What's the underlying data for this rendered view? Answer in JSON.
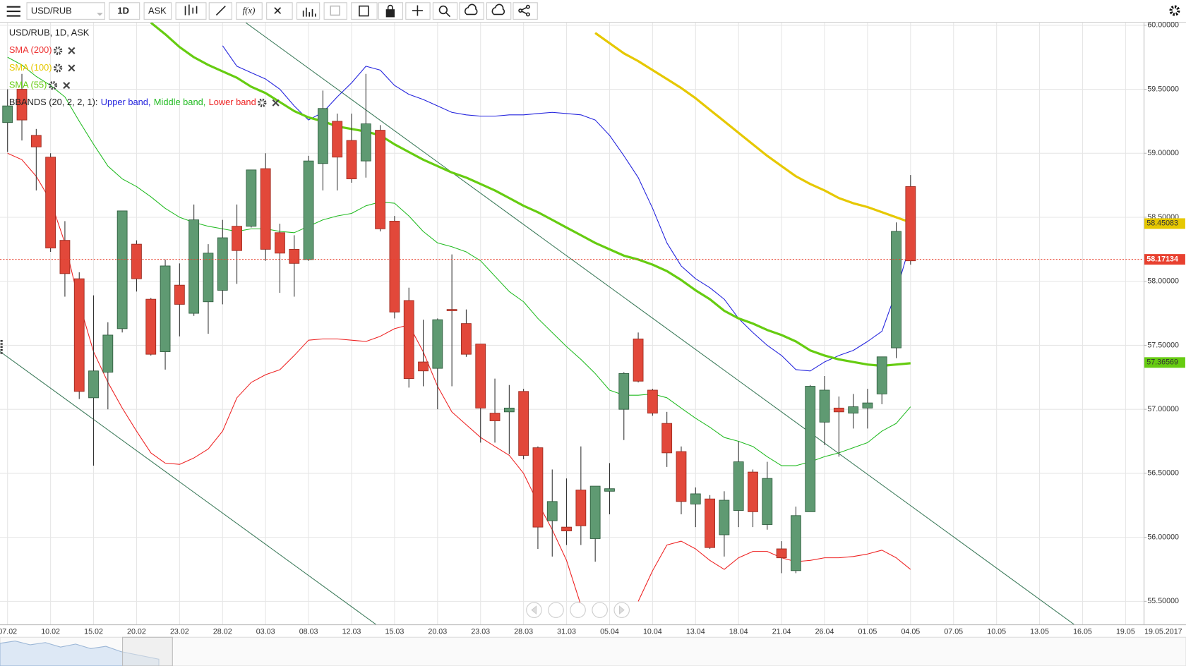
{
  "toolbar": {
    "symbol": "USD/RUB",
    "timeframe": "1D",
    "price_side": "ASK",
    "function_button": "f(x)"
  },
  "chart_data": {
    "type": "candlestick",
    "title": "USD/RUB, 1D, ASK",
    "categories": [
      "07.02",
      null,
      null,
      "10.02",
      null,
      null,
      "15.02",
      null,
      null,
      "20.02",
      null,
      null,
      "23.02",
      null,
      null,
      "28.02",
      null,
      null,
      "03.03",
      null,
      null,
      "08.03",
      null,
      null,
      "12.03",
      null,
      null,
      "15.03",
      null,
      null,
      "20.03",
      null,
      null,
      "23.03",
      null,
      null,
      "28.03",
      null,
      null,
      "31.03",
      null,
      null,
      "05.04",
      null,
      null,
      "10.04",
      null,
      null,
      "13.04",
      null,
      null,
      "18.04",
      null,
      null,
      "21.04",
      null,
      null,
      "26.04",
      null,
      null,
      "01.05",
      null,
      null,
      "04.05",
      null,
      null,
      "07.05",
      null,
      null,
      "10.05",
      null,
      null,
      "13.05",
      null,
      null,
      "16.05",
      null,
      null,
      "19.05"
    ],
    "open": [
      59.24,
      59.5,
      59.14,
      58.97,
      58.32,
      58.02,
      57.09,
      57.29,
      57.63,
      58.29,
      57.86,
      57.45,
      57.97,
      57.75,
      57.84,
      57.93,
      58.43,
      58.43,
      58.88,
      58.38,
      58.25,
      58.17,
      58.92,
      59.25,
      59.1,
      58.94,
      59.18,
      58.47,
      57.85,
      57.37,
      57.32,
      57.78,
      57.67,
      57.51,
      56.97,
      56.98,
      57.14,
      56.7,
      56.13,
      56.08,
      56.37,
      55.99,
      56.36,
      57.0,
      57.55,
      57.15,
      56.89,
      56.67,
      56.26,
      56.3,
      56.02,
      56.21,
      56.51,
      56.1,
      55.91,
      55.74,
      56.2,
      56.9,
      57.01,
      56.97,
      57.01,
      57.12,
      57.48,
      58.74,
      null,
      null,
      null,
      null,
      null,
      null,
      null,
      null,
      null,
      null,
      null,
      null,
      null,
      null,
      null
    ],
    "high": [
      59.5,
      59.62,
      59.19,
      59.0,
      58.47,
      58.07,
      57.89,
      57.68,
      58.55,
      58.32,
      57.87,
      58.17,
      58.14,
      58.6,
      58.29,
      58.48,
      58.6,
      58.87,
      59.0,
      58.45,
      58.36,
      58.98,
      59.49,
      59.31,
      59.31,
      59.62,
      59.22,
      58.51,
      57.95,
      57.7,
      57.71,
      58.21,
      57.78,
      57.51,
      57.24,
      57.19,
      57.16,
      56.71,
      56.53,
      56.46,
      56.71,
      56.4,
      56.58,
      57.29,
      57.6,
      57.16,
      56.98,
      56.71,
      56.39,
      56.33,
      56.36,
      56.75,
      56.53,
      56.59,
      55.97,
      56.24,
      57.19,
      57.26,
      57.1,
      57.12,
      57.16,
      57.41,
      58.46,
      58.83,
      null,
      null,
      null,
      null,
      null,
      null,
      null,
      null,
      null,
      null,
      null,
      null,
      null,
      null,
      null
    ],
    "low": [
      59.01,
      59.1,
      58.71,
      58.23,
      57.88,
      57.08,
      56.56,
      57.0,
      57.6,
      57.92,
      57.42,
      57.31,
      57.57,
      57.73,
      57.59,
      57.82,
      57.98,
      58.42,
      58.16,
      57.91,
      57.88,
      58.16,
      58.71,
      58.71,
      58.77,
      58.81,
      58.39,
      57.71,
      57.17,
      57.18,
      57.0,
      57.18,
      57.41,
      56.74,
      56.74,
      56.65,
      56.61,
      55.91,
      55.85,
      55.94,
      55.94,
      55.81,
      56.18,
      56.76,
      57.21,
      56.95,
      56.55,
      56.18,
      56.08,
      55.91,
      55.85,
      56.08,
      56.08,
      56.06,
      55.72,
      55.72,
      56.2,
      56.72,
      56.63,
      56.85,
      56.85,
      57.04,
      57.4,
      58.13,
      null,
      null,
      null,
      null,
      null,
      null,
      null,
      null,
      null,
      null,
      null,
      null,
      null,
      null,
      null
    ],
    "close": [
      59.37,
      59.26,
      59.05,
      58.26,
      58.06,
      57.14,
      57.3,
      57.58,
      58.55,
      58.02,
      57.43,
      58.12,
      57.82,
      58.48,
      58.22,
      58.34,
      58.24,
      58.87,
      58.25,
      58.22,
      58.14,
      58.94,
      59.35,
      58.97,
      58.8,
      59.23,
      58.41,
      57.76,
      57.24,
      57.3,
      57.7,
      57.77,
      57.43,
      57.01,
      56.91,
      57.01,
      56.64,
      56.08,
      56.28,
      56.05,
      56.09,
      56.4,
      56.38,
      57.28,
      57.22,
      56.97,
      56.66,
      56.28,
      56.34,
      55.92,
      56.29,
      56.59,
      56.2,
      56.46,
      55.84,
      56.17,
      57.18,
      57.15,
      56.98,
      57.02,
      57.05,
      57.41,
      58.39,
      58.16,
      null,
      null,
      null,
      null,
      null,
      null,
      null,
      null,
      null,
      null,
      null,
      null,
      null,
      null,
      null
    ],
    "up_color": "#5f9a72",
    "down_color": "#e2483a",
    "last_price": 58.17134,
    "last_price_color": "#e8402f",
    "current_date_label": "19.05.2017",
    "ylim": [
      55.32,
      60.02
    ],
    "yticks": [
      {
        "value": 55.5,
        "label": "55.50000"
      },
      {
        "value": 56,
        "label": "56.00000"
      },
      {
        "value": 56.5,
        "label": "56.50000"
      },
      {
        "value": 57,
        "label": "57.00000"
      },
      {
        "value": 57.5,
        "label": "57.50000"
      },
      {
        "value": 58,
        "label": "58.00000"
      },
      {
        "value": 58.5,
        "label": "58.50000"
      },
      {
        "value": 59,
        "label": "59.00000"
      },
      {
        "value": 59.5,
        "label": "59.50000"
      },
      {
        "value": 60,
        "label": "60.00000"
      }
    ],
    "grid": true,
    "series": [
      {
        "name": "SMA (200)",
        "color": "#ee3333",
        "line_width": 2,
        "values": [
          null,
          null,
          null,
          null,
          null,
          null,
          null,
          null,
          null,
          null,
          null,
          null,
          null,
          null,
          null,
          null,
          null,
          null,
          null,
          null,
          null,
          null,
          null,
          null,
          null,
          null,
          null,
          null,
          null,
          null,
          null,
          null,
          null,
          null,
          null,
          null,
          null,
          null,
          null,
          null,
          null,
          null,
          null,
          null,
          null,
          null,
          null,
          null,
          null,
          null,
          null,
          null,
          null,
          null,
          null,
          null,
          null,
          null,
          null,
          null,
          null,
          null,
          null,
          null,
          null,
          null,
          null,
          null,
          null,
          null,
          null,
          null,
          null,
          null,
          null,
          null,
          null,
          null,
          null
        ]
      },
      {
        "name": "SMA (100)",
        "color": "#e6c800",
        "line_width": 3,
        "last_value": 58.45083,
        "values": [
          null,
          null,
          null,
          null,
          null,
          null,
          null,
          null,
          null,
          null,
          null,
          null,
          null,
          null,
          null,
          null,
          null,
          null,
          null,
          null,
          null,
          null,
          null,
          null,
          null,
          null,
          null,
          null,
          null,
          null,
          null,
          null,
          null,
          null,
          null,
          null,
          null,
          null,
          null,
          null,
          null,
          59.94,
          59.86,
          59.78,
          59.72,
          59.65,
          59.58,
          59.51,
          59.43,
          59.34,
          59.25,
          59.16,
          59.07,
          58.98,
          58.9,
          58.82,
          58.76,
          58.71,
          58.65,
          58.61,
          58.58,
          58.54,
          58.5,
          58.46,
          null,
          null,
          null,
          null,
          null,
          null,
          null,
          null,
          null,
          null,
          null,
          null,
          null,
          null,
          null
        ]
      },
      {
        "name": "SMA (55)",
        "color": "#66cc11",
        "line_width": 3,
        "last_value": 57.36569,
        "values": [
          null,
          null,
          null,
          null,
          null,
          null,
          null,
          null,
          null,
          null,
          60.02,
          59.93,
          59.83,
          59.75,
          59.69,
          59.64,
          59.59,
          59.52,
          59.47,
          59.4,
          59.33,
          59.28,
          59.25,
          59.21,
          59.19,
          59.17,
          59.14,
          59.07,
          59.01,
          58.95,
          58.9,
          58.85,
          58.81,
          58.76,
          58.71,
          58.65,
          58.59,
          58.54,
          58.48,
          58.42,
          58.36,
          58.3,
          58.25,
          58.2,
          58.17,
          58.13,
          58.08,
          58.01,
          57.93,
          57.86,
          57.77,
          57.71,
          57.67,
          57.62,
          57.58,
          57.53,
          57.46,
          57.42,
          57.39,
          57.37,
          57.35,
          57.34,
          57.35,
          57.36,
          null,
          null,
          null,
          null,
          null,
          null,
          null,
          null,
          null,
          null,
          null,
          null,
          null,
          null,
          null
        ]
      }
    ],
    "bbands": {
      "name": "BBANDS (20, 2, 2, 1):",
      "series": [
        {
          "name": "Upper band,",
          "color": "#2222dd",
          "line_width": 1,
          "values": [
            null,
            null,
            null,
            null,
            null,
            null,
            null,
            null,
            null,
            null,
            null,
            null,
            null,
            null,
            null,
            59.84,
            59.68,
            59.63,
            59.58,
            59.5,
            59.37,
            59.26,
            59.32,
            59.44,
            59.55,
            59.68,
            59.65,
            59.53,
            59.46,
            59.42,
            59.37,
            59.32,
            59.3,
            59.29,
            59.29,
            59.3,
            59.3,
            59.31,
            59.32,
            59.31,
            59.3,
            59.26,
            59.14,
            58.98,
            58.81,
            58.57,
            58.3,
            58.12,
            58.02,
            57.95,
            57.86,
            57.71,
            57.6,
            57.5,
            57.42,
            57.31,
            57.3,
            57.37,
            57.42,
            57.46,
            57.53,
            57.61,
            57.92,
            58.3,
            null,
            null,
            null,
            null,
            null,
            null,
            null,
            null,
            null,
            null,
            null,
            null,
            null,
            null,
            null
          ]
        },
        {
          "name": "Middle band,",
          "color": "#22bb22",
          "line_width": 1,
          "values": [
            59.75,
            59.69,
            59.6,
            59.53,
            59.44,
            59.25,
            59.07,
            58.9,
            58.8,
            58.74,
            58.66,
            58.57,
            58.5,
            58.46,
            58.43,
            58.41,
            58.39,
            58.41,
            58.41,
            58.39,
            58.38,
            58.43,
            58.48,
            58.51,
            58.53,
            58.59,
            58.62,
            58.61,
            58.51,
            58.39,
            58.3,
            58.27,
            58.23,
            58.16,
            58.04,
            57.92,
            57.84,
            57.71,
            57.6,
            57.49,
            57.39,
            57.28,
            57.15,
            57.11,
            57.11,
            57.12,
            57.09,
            57.01,
            56.93,
            56.86,
            56.78,
            56.75,
            56.71,
            56.63,
            56.56,
            56.56,
            56.59,
            56.63,
            56.66,
            56.7,
            56.74,
            56.83,
            56.89,
            57.02,
            null,
            null,
            null,
            null,
            null,
            null,
            null,
            null,
            null,
            null,
            null,
            null,
            null,
            null,
            null
          ]
        },
        {
          "name": "Lower band",
          "color": "#ee2222",
          "line_width": 1,
          "values": [
            59.0,
            58.95,
            58.82,
            58.63,
            58.3,
            57.83,
            57.45,
            57.21,
            57.01,
            56.83,
            56.66,
            56.58,
            56.57,
            56.62,
            56.69,
            56.83,
            57.09,
            57.21,
            57.27,
            57.31,
            57.42,
            57.54,
            57.55,
            57.55,
            57.54,
            57.53,
            57.57,
            57.63,
            57.66,
            57.45,
            57.18,
            56.98,
            56.88,
            56.78,
            56.71,
            56.64,
            56.5,
            56.27,
            56.06,
            55.82,
            55.47,
            null,
            null,
            null,
            55.5,
            55.74,
            55.94,
            55.97,
            55.91,
            55.82,
            55.75,
            55.84,
            55.89,
            55.89,
            55.84,
            55.81,
            55.82,
            55.84,
            55.84,
            55.85,
            55.87,
            55.9,
            55.84,
            55.75,
            null,
            null,
            null,
            null,
            null,
            null,
            null,
            null,
            null,
            null,
            null,
            null,
            null,
            null,
            null
          ]
        }
      ]
    }
  }
}
